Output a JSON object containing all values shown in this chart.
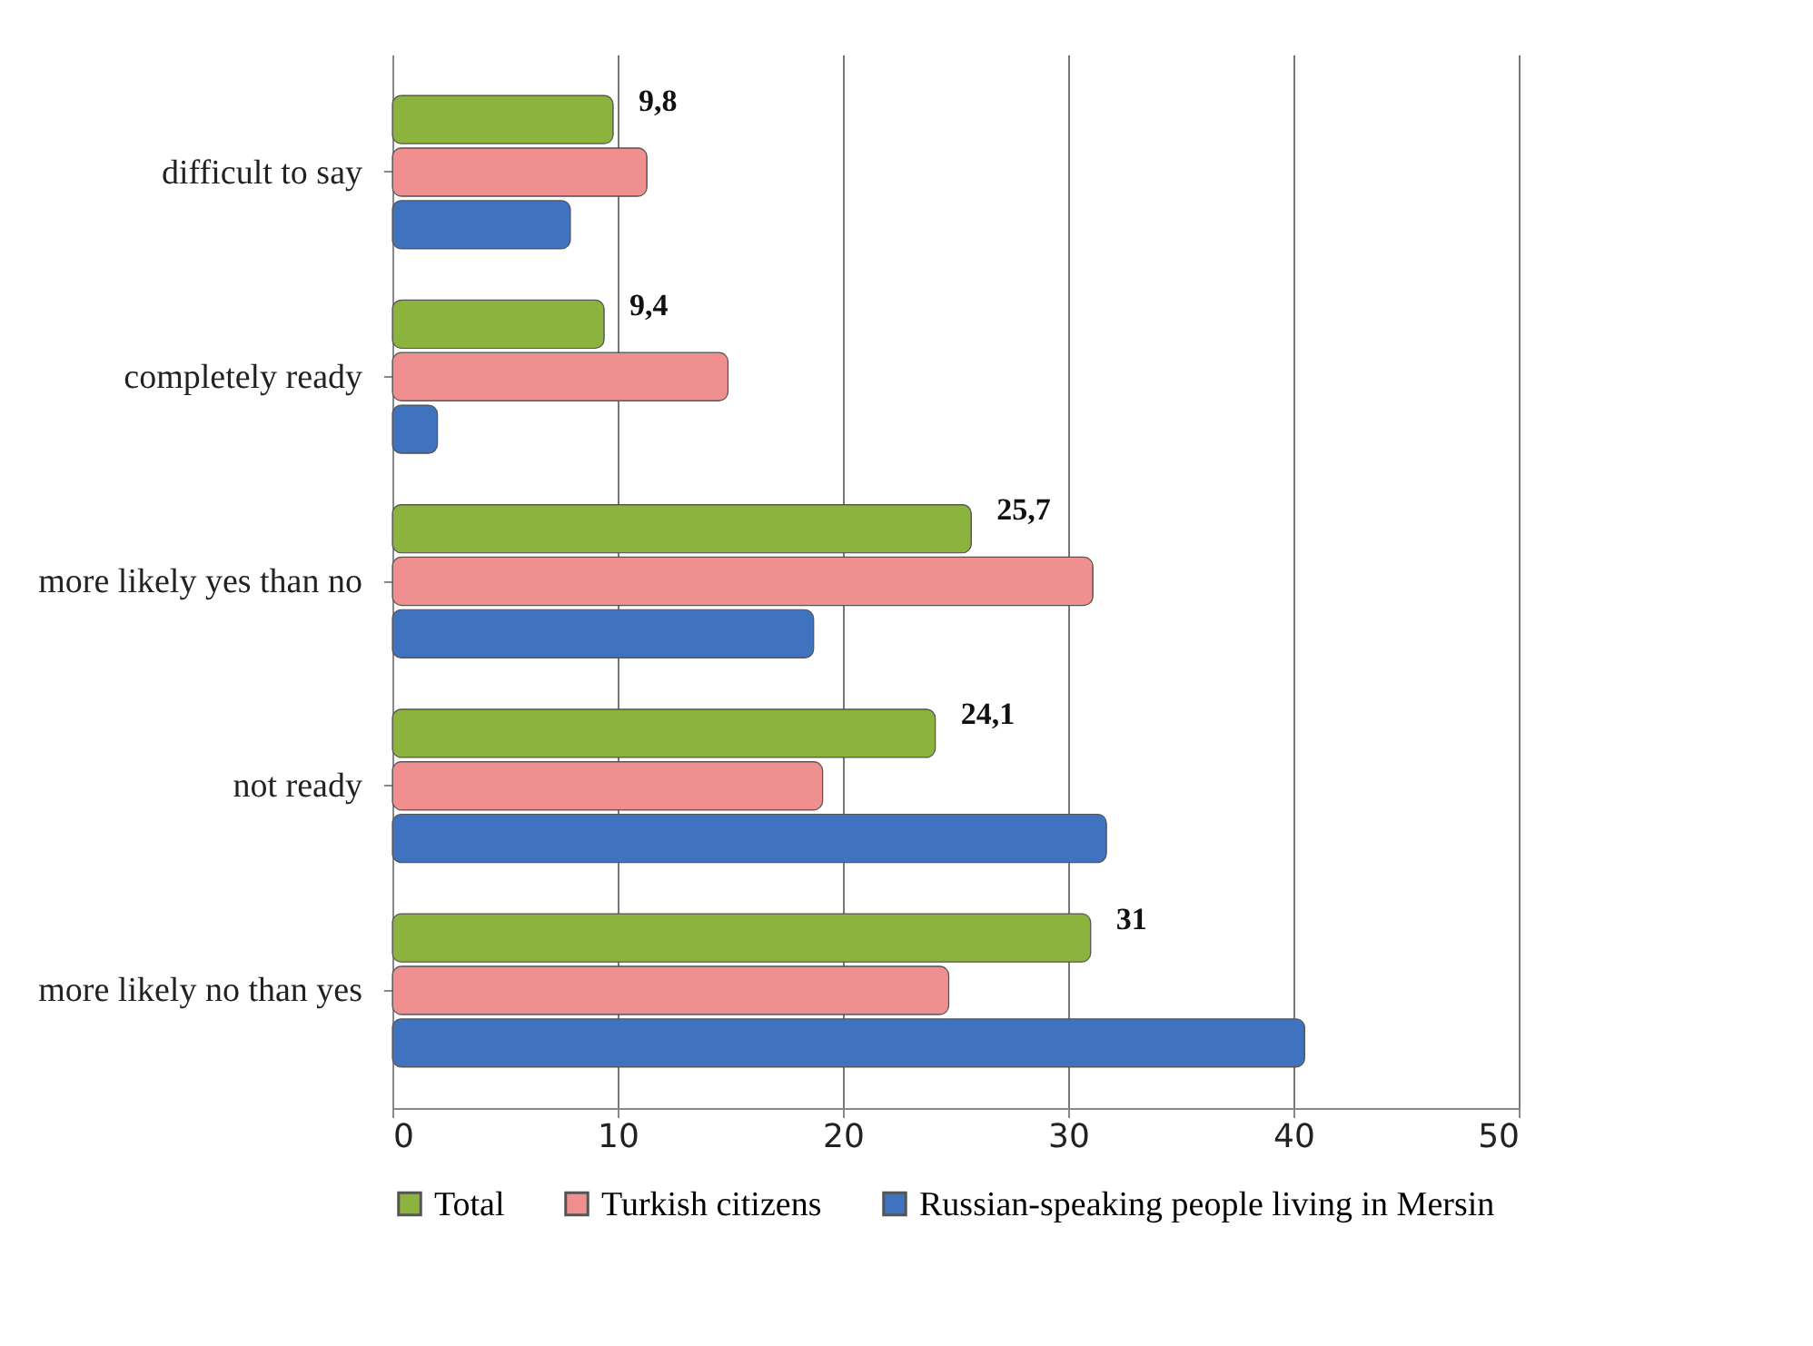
{
  "chart_data": {
    "type": "bar",
    "orientation": "horizontal",
    "categories": [
      "difficult to say",
      "completely ready",
      "more likely yes than no",
      "not ready",
      "more likely no than yes"
    ],
    "series": [
      {
        "name": "Total",
        "color": "#8db33f",
        "values": [
          9.8,
          9.4,
          25.7,
          24.1,
          31
        ],
        "value_labels": [
          "9,8",
          "9,4",
          "25,7",
          "24,1",
          "31"
        ]
      },
      {
        "name": "Turkish citizens",
        "color": "#f08f8f",
        "values": [
          11.3,
          14.9,
          31.1,
          19.1,
          24.7
        ]
      },
      {
        "name": "Russian-speaking people living in Mersin",
        "color": "#3f73c0",
        "values": [
          7.9,
          2.0,
          18.7,
          31.7,
          40.5
        ]
      }
    ],
    "xlim": [
      0,
      50
    ],
    "xticks": [
      0,
      10,
      20,
      30,
      40,
      50
    ],
    "grid": "x",
    "legend": "bottom"
  }
}
